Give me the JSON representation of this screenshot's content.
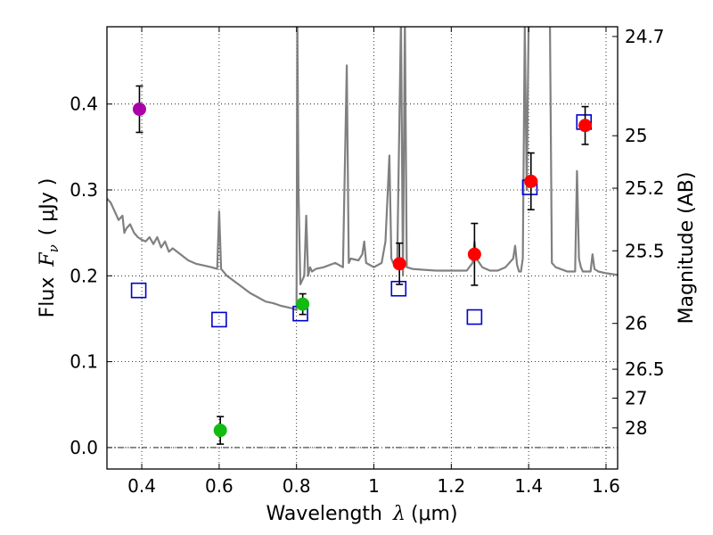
{
  "chart_data": {
    "type": "scatter",
    "xlabel_prefix": "Wavelength",
    "xlabel_symbol": "λ",
    "xlabel_unit": "(μm)",
    "ylabel_prefix": "Flux",
    "ylabel_symbol": "F",
    "ylabel_subscript": "ν",
    "ylabel_unit": "( μJy )",
    "y2label": "Magnitude (AB)",
    "xlim": [
      0.31,
      1.63
    ],
    "ylim": [
      -0.025,
      0.49
    ],
    "grid": true,
    "x_ticks": [
      {
        "value": 0.4,
        "label": "0.4"
      },
      {
        "value": 0.6,
        "label": "0.6"
      },
      {
        "value": 0.8,
        "label": "0.8"
      },
      {
        "value": 1.0,
        "label": "1"
      },
      {
        "value": 1.2,
        "label": "1.2"
      },
      {
        "value": 1.4,
        "label": "1.4"
      },
      {
        "value": 1.6,
        "label": "1.6"
      }
    ],
    "y_ticks": [
      {
        "value": 0.0,
        "label": "0.0"
      },
      {
        "value": 0.1,
        "label": "0.1"
      },
      {
        "value": 0.2,
        "label": "0.2"
      },
      {
        "value": 0.3,
        "label": "0.3"
      },
      {
        "value": 0.4,
        "label": "0.4"
      }
    ],
    "y2_ticks": [
      {
        "mag": 24.7,
        "label": "24.7"
      },
      {
        "mag": 25,
        "label": "25"
      },
      {
        "mag": 25.2,
        "label": "25.2"
      },
      {
        "mag": 25.5,
        "label": "25.5"
      },
      {
        "mag": 26,
        "label": "26"
      },
      {
        "mag": 26.5,
        "label": "26.5"
      },
      {
        "mag": 27,
        "label": "27"
      },
      {
        "mag": 28,
        "label": "28"
      }
    ],
    "colors": {
      "model": "#808080",
      "magenta": "#aa00aa",
      "green": "#11bb11",
      "red": "#ff0000",
      "square": "#0000cc",
      "errorbar": "#000000"
    },
    "series": [
      {
        "name": "observed-flux",
        "points": [
          {
            "x": 0.394,
            "y": 0.394,
            "err": 0.027,
            "color": "magenta"
          },
          {
            "x": 0.603,
            "y": 0.02,
            "err": 0.016,
            "color": "green"
          },
          {
            "x": 0.816,
            "y": 0.167,
            "err": 0.012,
            "color": "green"
          },
          {
            "x": 1.066,
            "y": 0.214,
            "err": 0.024,
            "color": "red"
          },
          {
            "x": 1.26,
            "y": 0.225,
            "err": 0.036,
            "color": "red"
          },
          {
            "x": 1.406,
            "y": 0.31,
            "err": 0.033,
            "color": "red"
          },
          {
            "x": 1.546,
            "y": 0.375,
            "err": 0.022,
            "color": "red"
          }
        ]
      },
      {
        "name": "model-flux",
        "points": [
          {
            "x": 0.392,
            "y": 0.183
          },
          {
            "x": 0.6,
            "y": 0.149
          },
          {
            "x": 0.81,
            "y": 0.156
          },
          {
            "x": 1.064,
            "y": 0.185
          },
          {
            "x": 1.26,
            "y": 0.152
          },
          {
            "x": 1.403,
            "y": 0.303
          },
          {
            "x": 1.543,
            "y": 0.379
          }
        ]
      },
      {
        "name": "model-spectrum",
        "x": [
          0.31,
          0.32,
          0.33,
          0.34,
          0.35,
          0.355,
          0.36,
          0.37,
          0.38,
          0.39,
          0.4,
          0.41,
          0.42,
          0.43,
          0.44,
          0.45,
          0.46,
          0.47,
          0.48,
          0.5,
          0.52,
          0.54,
          0.56,
          0.58,
          0.595,
          0.6,
          0.605,
          0.62,
          0.65,
          0.68,
          0.7,
          0.72,
          0.74,
          0.76,
          0.78,
          0.79,
          0.8,
          0.802,
          0.805,
          0.81,
          0.82,
          0.825,
          0.83,
          0.835,
          0.84,
          0.85,
          0.87,
          0.9,
          0.92,
          0.93,
          0.935,
          0.94,
          0.96,
          0.97,
          0.975,
          0.98,
          1.0,
          1.02,
          1.03,
          1.04,
          1.045,
          1.05,
          1.06,
          1.07,
          1.075,
          1.08,
          1.085,
          1.1,
          1.13,
          1.16,
          1.2,
          1.24,
          1.255,
          1.26,
          1.265,
          1.28,
          1.3,
          1.32,
          1.34,
          1.36,
          1.365,
          1.37,
          1.375,
          1.38,
          1.385,
          1.39,
          1.395,
          1.4,
          1.41,
          1.43,
          1.455,
          1.46,
          1.47,
          1.5,
          1.52,
          1.525,
          1.53,
          1.535,
          1.54,
          1.55,
          1.56,
          1.565,
          1.57,
          1.58,
          1.6,
          1.63
        ],
        "y": [
          0.29,
          0.285,
          0.275,
          0.265,
          0.27,
          0.25,
          0.255,
          0.26,
          0.25,
          0.245,
          0.242,
          0.24,
          0.245,
          0.237,
          0.245,
          0.233,
          0.24,
          0.228,
          0.232,
          0.225,
          0.218,
          0.214,
          0.212,
          0.21,
          0.208,
          0.275,
          0.208,
          0.2,
          0.19,
          0.18,
          0.175,
          0.17,
          0.168,
          0.165,
          0.163,
          0.162,
          0.16,
          0.5,
          0.3,
          0.19,
          0.2,
          0.27,
          0.2,
          0.21,
          0.205,
          0.208,
          0.21,
          0.215,
          0.21,
          0.445,
          0.215,
          0.22,
          0.218,
          0.225,
          0.24,
          0.215,
          0.21,
          0.215,
          0.24,
          0.34,
          0.22,
          0.215,
          0.21,
          0.5,
          0.2,
          0.5,
          0.21,
          0.208,
          0.207,
          0.206,
          0.206,
          0.206,
          0.215,
          0.24,
          0.22,
          0.21,
          0.206,
          0.206,
          0.21,
          0.22,
          0.235,
          0.213,
          0.205,
          0.205,
          0.22,
          0.49,
          0.3,
          0.5,
          0.5,
          0.5,
          0.5,
          0.215,
          0.21,
          0.205,
          0.205,
          0.322,
          0.22,
          0.21,
          0.205,
          0.205,
          0.205,
          0.225,
          0.208,
          0.205,
          0.203,
          0.201
        ]
      }
    ]
  }
}
